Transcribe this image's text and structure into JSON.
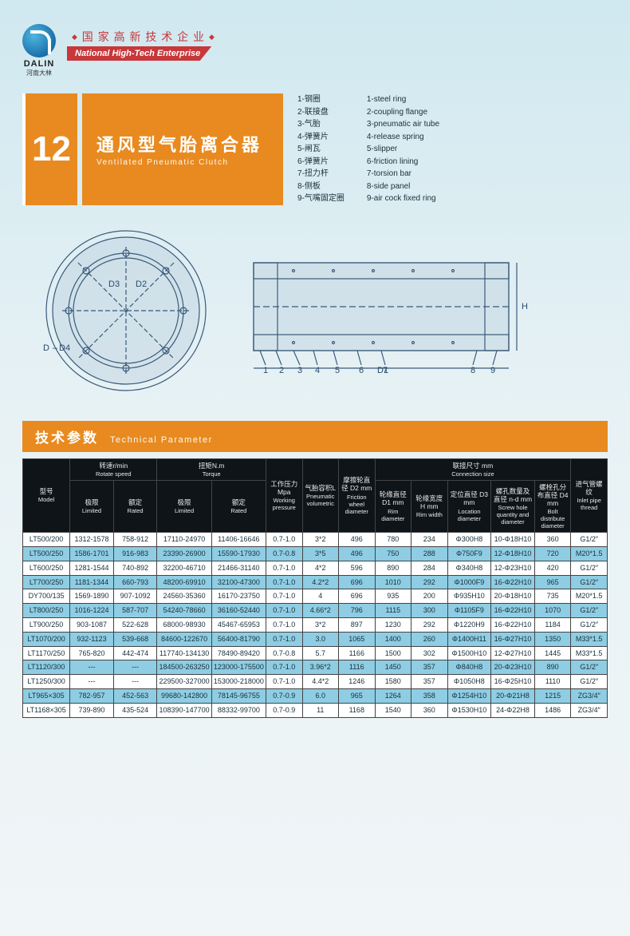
{
  "brand": {
    "name": "DALIN",
    "sub": "河南大林"
  },
  "hitech": {
    "cn": " 国 家 高 新 技 术 企 业 ",
    "en": "National High-Tech Enterprise"
  },
  "section": {
    "num": "12",
    "title_cn": "通风型气胎离合器",
    "title_en": "Ventilated Pneumatic Clutch"
  },
  "legend_cn": [
    "1-钢圈",
    "2-联接盘",
    "3-气胎",
    "4-弹簧片",
    "5-闸瓦",
    "6-弹簧片",
    "7-扭力杆",
    "8-侧板",
    "9-气嘴固定圈"
  ],
  "legend_en": [
    "1-steel  ring",
    "2-coupling flange",
    "3-pneumatic air tube",
    "4-release spring",
    "5-slipper",
    "6-friction lining",
    "7-torsion bar",
    "8-side panel",
    "9-air cock fixed ring"
  ],
  "diagram_labels": {
    "D": "D",
    "D4": "D4",
    "D3": "D3",
    "D2": "D2",
    "D1": "D1",
    "H": "H",
    "callouts": [
      "1",
      "2",
      "3",
      "4",
      "5",
      "6",
      "7",
      "8",
      "9"
    ]
  },
  "param_header": {
    "cn": "技术参数",
    "en": "Technical Parameter"
  },
  "palette": {
    "orange": "#e88a1f",
    "red": "#c8373a",
    "thead_bg": "#0f1418",
    "row_even": "#8ecde3",
    "row_odd": "#ffffff",
    "border": "#444444",
    "diag_stroke": "#3a5a7a",
    "bg_top": "#d0e8f0",
    "bg_bottom": "#f0f5f7"
  },
  "table": {
    "groupHeaders": {
      "model": {
        "cn": "型号",
        "en": "Model"
      },
      "speed": {
        "cn": "转速r/min",
        "en": "Rotate speed"
      },
      "torque": {
        "cn": "扭矩N.m",
        "en": "Torque"
      },
      "pressure": {
        "cn": "工作压力 Mpa",
        "en": "Working pressure"
      },
      "volumetric": {
        "cn": "气胎容积L",
        "en": "Pneumatic volumetric"
      },
      "friction": {
        "cn": "摩擦轮直径 D2 mm",
        "en": "Friction wheel diameter"
      },
      "conn": {
        "cn": "联接尺寸 mm",
        "en": "Connection size"
      },
      "inlet": {
        "cn": "进气管螺纹",
        "en": "Inlet pipe thread"
      }
    },
    "subHeaders": {
      "limited": {
        "cn": "极限",
        "en": "Limited"
      },
      "rated": {
        "cn": "额定",
        "en": "Rated"
      },
      "d1": {
        "cn": "轮缘直径 D1 mm",
        "en": "Rim diameter"
      },
      "h": {
        "cn": "轮缘宽度 H mm",
        "en": "Rim width"
      },
      "d3": {
        "cn": "定位直径 D3 mm",
        "en": "Location diameter"
      },
      "nd": {
        "cn": "螺孔数量及直径 n-d mm",
        "en": "Screw hole quantity and diameter"
      },
      "d4": {
        "cn": "螺栓孔分布直径 D4 mm",
        "en": "Bolt distribute diameter"
      }
    },
    "rows": [
      [
        "LT500/200",
        "1312-1578",
        "758-912",
        "17110-24970",
        "11406-16646",
        "0.7-1.0",
        "3*2",
        "496",
        "780",
        "234",
        "Φ300H8",
        "10-Φ18H10",
        "360",
        "G1/2″"
      ],
      [
        "LT500/250",
        "1586-1701",
        "916-983",
        "23390-26900",
        "15590-17930",
        "0.7-0.8",
        "3*5",
        "496",
        "750",
        "288",
        "Φ750F9",
        "12-Φ18H10",
        "720",
        "M20*1.5"
      ],
      [
        "LT600/250",
        "1281-1544",
        "740-892",
        "32200-46710",
        "21466-31140",
        "0.7-1.0",
        "4*2",
        "596",
        "890",
        "284",
        "Φ340H8",
        "12-Φ23H10",
        "420",
        "G1/2″"
      ],
      [
        "LT700/250",
        "1181-1344",
        "660-793",
        "48200-69910",
        "32100-47300",
        "0.7-1.0",
        "4.2*2",
        "696",
        "1010",
        "292",
        "Φ1000F9",
        "16-Φ22H10",
        "965",
        "G1/2″"
      ],
      [
        "DY700/135",
        "1569-1890",
        "907-1092",
        "24560-35360",
        "16170-23750",
        "0.7-1.0",
        "4",
        "696",
        "935",
        "200",
        "Φ935H10",
        "20-Φ18H10",
        "735",
        "M20*1.5"
      ],
      [
        "LT800/250",
        "1016-1224",
        "587-707",
        "54240-78660",
        "36160-52440",
        "0.7-1.0",
        "4.66*2",
        "796",
        "1115",
        "300",
        "Φ1105F9",
        "16-Φ22H10",
        "1070",
        "G1/2″"
      ],
      [
        "LT900/250",
        "903-1087",
        "522-628",
        "68000-98930",
        "45467-65953",
        "0.7-1.0",
        "3*2",
        "897",
        "1230",
        "292",
        "Φ1220H9",
        "16-Φ22H10",
        "1184",
        "G1/2″"
      ],
      [
        "LT1070/200",
        "932-1123",
        "539-668",
        "84600-122670",
        "56400-81790",
        "0.7-1.0",
        "3.0",
        "1065",
        "1400",
        "260",
        "Φ1400H11",
        "16-Φ27H10",
        "1350",
        "M33*1.5"
      ],
      [
        "LT1170/250",
        "765-820",
        "442-474",
        "117740-134130",
        "78490-89420",
        "0.7-0.8",
        "5.7",
        "1166",
        "1500",
        "302",
        "Φ1500H10",
        "12-Φ27H10",
        "1445",
        "M33*1.5"
      ],
      [
        "LT1120/300",
        "---",
        "---",
        "184500-263250",
        "123000-175500",
        "0.7-1.0",
        "3.96*2",
        "1116",
        "1450",
        "357",
        "Φ840H8",
        "20-Φ23H10",
        "890",
        "G1/2″"
      ],
      [
        "LT1250/300",
        "---",
        "---",
        "229500-327000",
        "153000-218000",
        "0.7-1.0",
        "4.4*2",
        "1246",
        "1580",
        "357",
        "Φ1050H8",
        "16-Φ25H10",
        "1110",
        "G1/2″"
      ],
      [
        "LT965×305",
        "782-957",
        "452-563",
        "99680-142800",
        "78145-96755",
        "0.7-0.9",
        "6.0",
        "965",
        "1264",
        "358",
        "Φ1254H10",
        "20-Φ21H8",
        "1215",
        "ZG3/4″"
      ],
      [
        "LT1168×305",
        "739-890",
        "435-524",
        "108390-147700",
        "88332-99700",
        "0.7-0.9",
        "11",
        "1168",
        "1540",
        "360",
        "Φ1530H10",
        "24-Φ22H8",
        "1486",
        "ZG3/4″"
      ]
    ]
  }
}
